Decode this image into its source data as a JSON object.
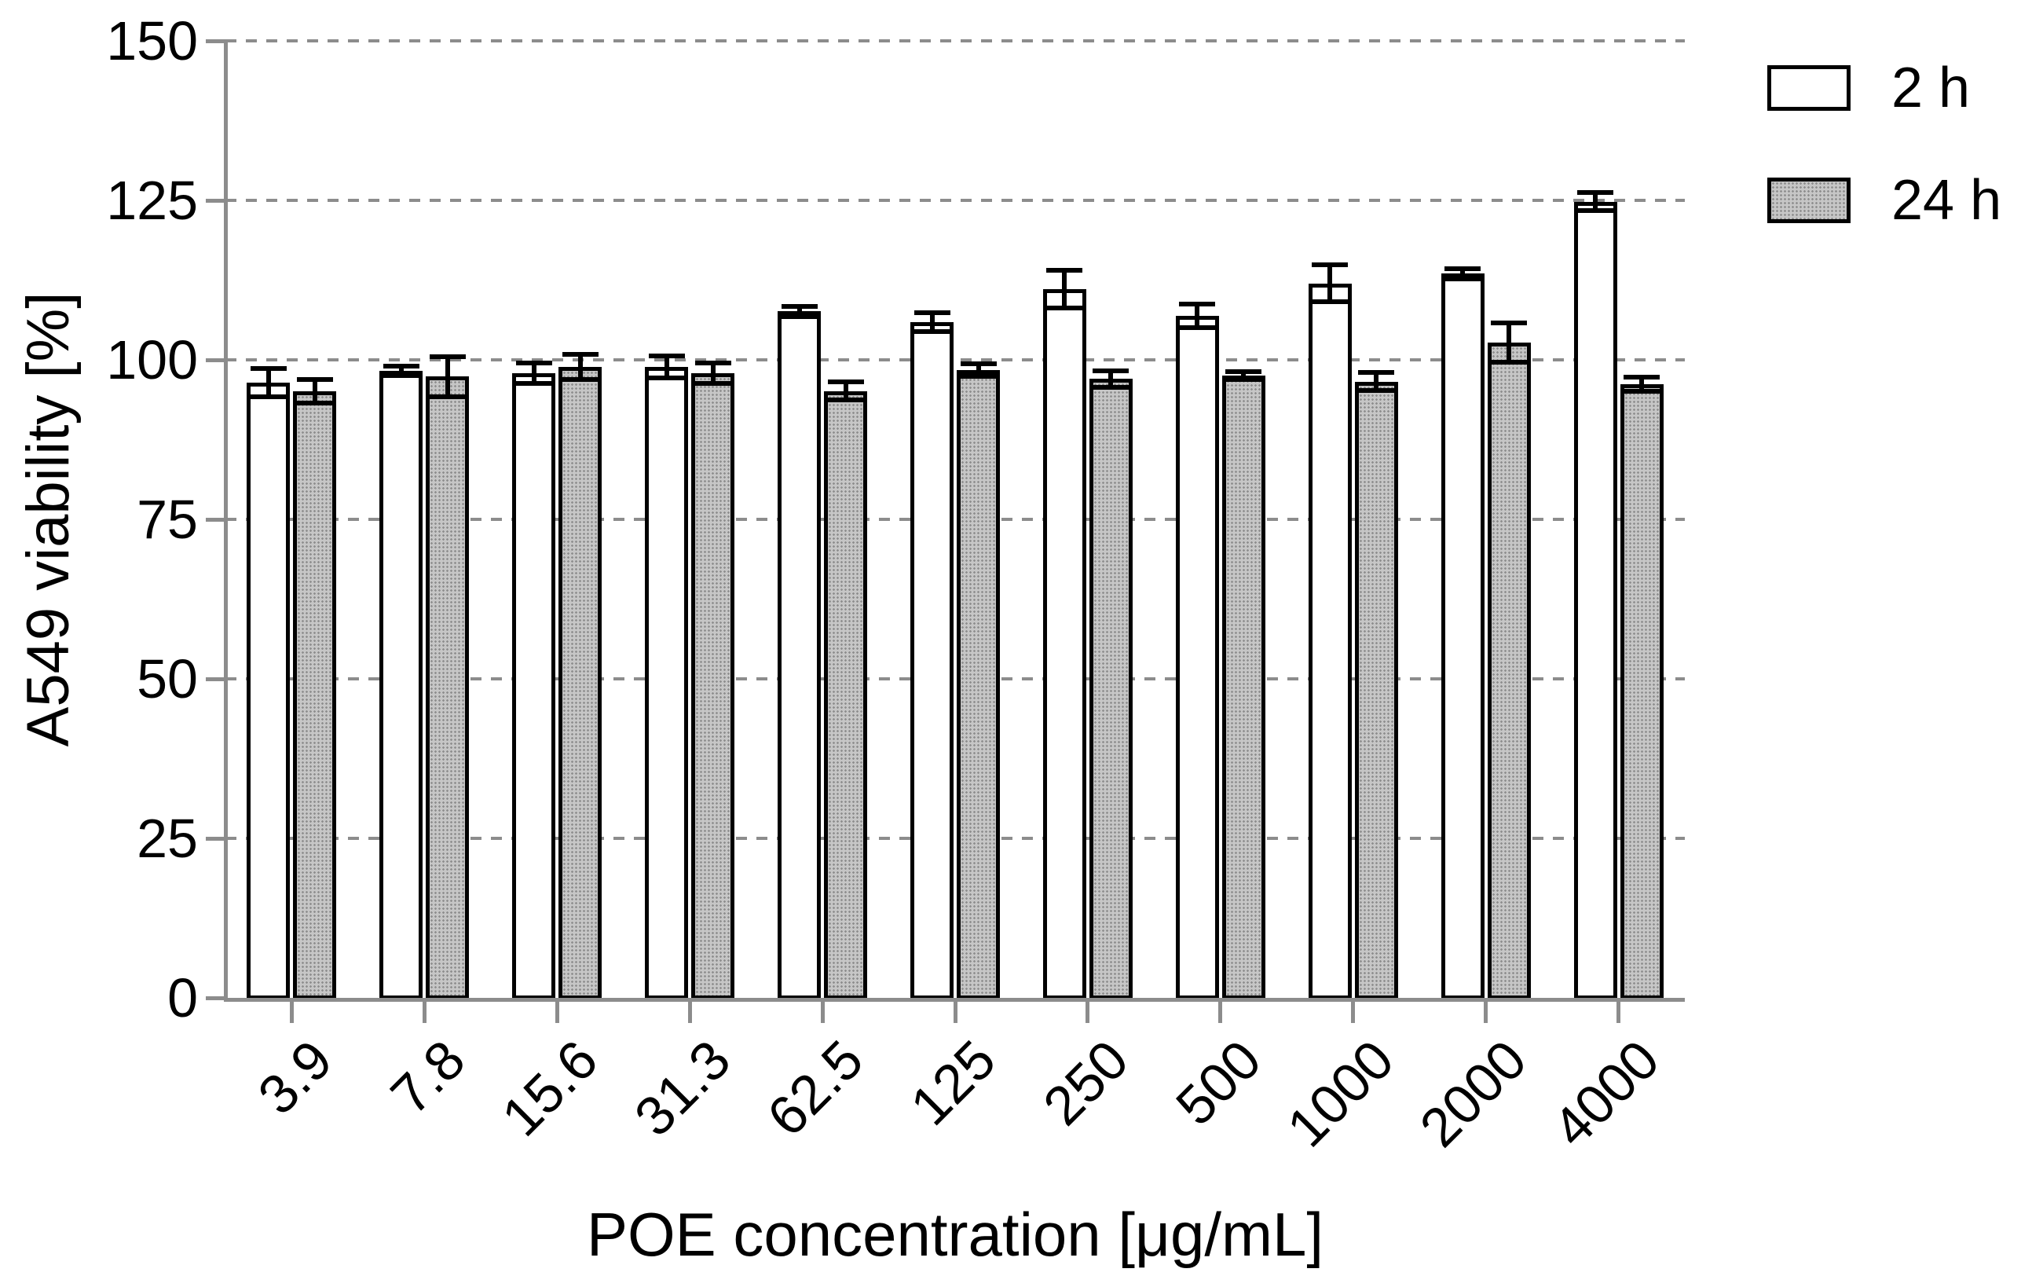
{
  "chart_data": {
    "type": "bar",
    "title": "",
    "xlabel": "POE concentration [μg/mL]",
    "ylabel": "A549 viability [%]",
    "categories": [
      "3.9",
      "7.8",
      "15.6",
      "31.3",
      "62.5",
      "125",
      "250",
      "500",
      "1000",
      "2000",
      "4000"
    ],
    "series": [
      {
        "name": "2 h",
        "fill": "white",
        "values": [
          96.4,
          98.3,
          97.9,
          98.9,
          107.6,
          105.9,
          111.1,
          106.9,
          112.0,
          113.5,
          124.8
        ],
        "errors": [
          2.6,
          1.1,
          2.0,
          2.1,
          1.2,
          1.8,
          3.3,
          2.2,
          3.3,
          1.2,
          1.8
        ]
      },
      {
        "name": "24 h",
        "fill": "gray-dotted",
        "values": [
          95.1,
          97.4,
          98.9,
          97.9,
          95.1,
          98.4,
          97.0,
          97.5,
          96.6,
          102.7,
          96.2
        ],
        "errors": [
          2.2,
          3.5,
          2.3,
          2.0,
          1.8,
          1.3,
          1.7,
          1.0,
          1.8,
          3.4,
          1.5
        ]
      }
    ],
    "ylim": [
      0,
      150
    ],
    "yticks": [
      0,
      25,
      50,
      75,
      100,
      125,
      150
    ],
    "grid": "dashed-horizontal-behind-bars",
    "legend_position": "top-right",
    "error_bars": "plus-minus-with-caps"
  },
  "colors": {
    "background": "#ffffff",
    "axis": "#8c8c8c",
    "gridline": "#8c8c8c",
    "bar_border": "#000000",
    "bar_fill_2h": "#ffffff",
    "bar_fill_24h": "#b5b5b5",
    "text": "#000000"
  }
}
